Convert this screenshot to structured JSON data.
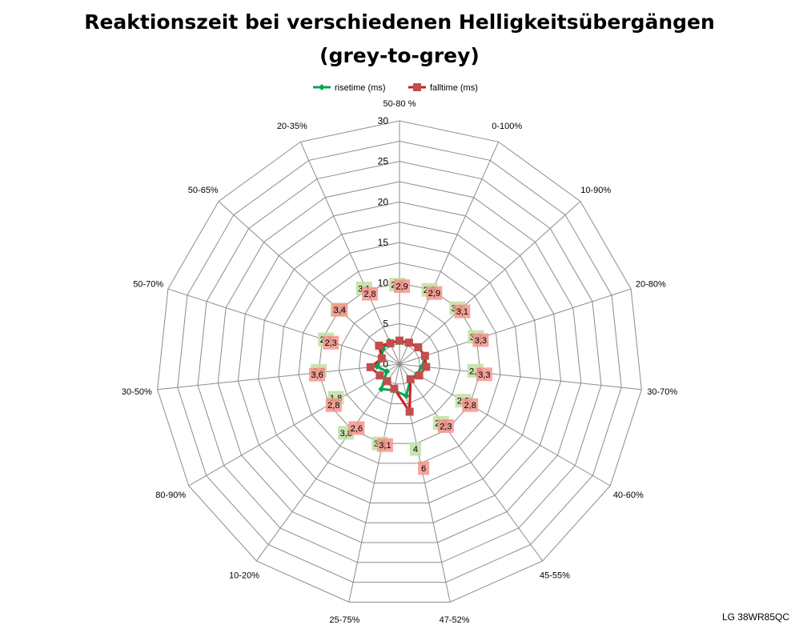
{
  "chart_data": {
    "type": "radar",
    "title_line1": "Reaktionszeit bei verschiedenen Helligkeitsübergängen",
    "title_line2": "(grey-to-grey)",
    "categories": [
      "50-80 %",
      "0-100%",
      "10-90%",
      "20-80%",
      "30-70%",
      "40-60%",
      "45-55%",
      "47-52%",
      "25-75%",
      "10-20%",
      "80-90%",
      "30-50%",
      "50-70%",
      "50-65%",
      "20-35%"
    ],
    "rlim": [
      0,
      30
    ],
    "ticks": [
      0,
      5,
      10,
      15,
      20,
      25,
      30
    ],
    "grid": true,
    "legend_position": "top",
    "series": [
      {
        "name": "risetime (ms)",
        "color": "#00a651",
        "label_bg": "#c4e0a6",
        "marker": "diamond",
        "values": [
          2.7,
          2.9,
          3.1,
          3.3,
          2.8,
          2.5,
          2.3,
          4,
          3.3,
          3.8,
          1.8,
          2.8,
          2.3,
          2.8,
          3.1
        ],
        "labels": [
          "2,7",
          "2,9",
          "3,1",
          "3,3",
          "2,8",
          "2,5",
          "2,3",
          "4",
          "3,3",
          "3,8",
          "1,8",
          "2,8",
          "2,3",
          "2,8",
          "3,1"
        ]
      },
      {
        "name": "falltime (ms)",
        "color": "#d7191c",
        "label_bg": "#f4948c",
        "marker": "square",
        "values": [
          2.9,
          2.9,
          3.1,
          3.3,
          3.3,
          2.8,
          2.3,
          6,
          3.1,
          2.6,
          2.8,
          3.6,
          2.3,
          3.4,
          2.8
        ],
        "labels": [
          "2,9",
          "2,9",
          "3,1",
          "3,3",
          "3,3",
          "2,8",
          "2,3",
          "6",
          "3,1",
          "2,6",
          "2,8",
          "3,6",
          "2,3",
          "3,4",
          "2,8"
        ]
      }
    ]
  },
  "watermark": "LG 38WR85QC"
}
